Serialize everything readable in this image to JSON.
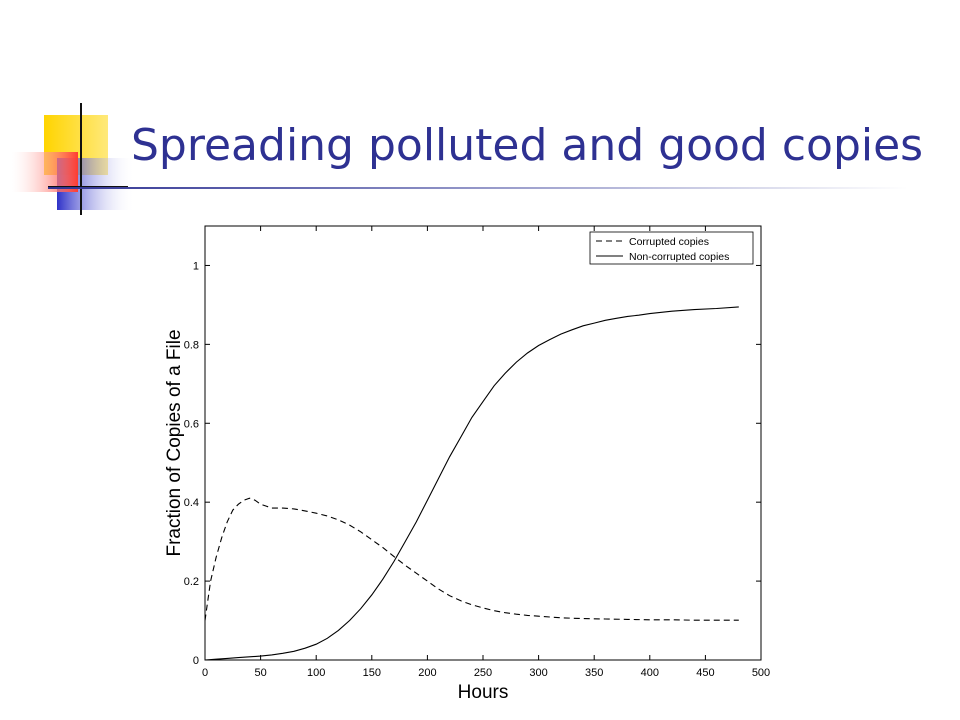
{
  "slide": {
    "title": "Spreading polluted and good copies"
  },
  "chart_data": {
    "type": "line",
    "xlabel": "Hours",
    "ylabel": "Fraction of Copies of a File",
    "xlim": [
      0,
      500
    ],
    "ylim": [
      0,
      1.1
    ],
    "xticks": [
      0,
      50,
      100,
      150,
      200,
      250,
      300,
      350,
      400,
      450,
      500
    ],
    "yticks": [
      0,
      0.2,
      0.4,
      0.6,
      0.8,
      1
    ],
    "legend_placement": "top-right",
    "grid": false,
    "series": [
      {
        "name": "Corrupted copies",
        "style": "dashed",
        "color": "#000000",
        "x": [
          0,
          2,
          5,
          10,
          15,
          20,
          25,
          30,
          35,
          40,
          45,
          50,
          55,
          60,
          70,
          80,
          90,
          100,
          110,
          120,
          130,
          140,
          150,
          160,
          170,
          180,
          190,
          200,
          210,
          220,
          230,
          240,
          250,
          260,
          270,
          280,
          290,
          300,
          320,
          340,
          360,
          380,
          400,
          420,
          440,
          460,
          480
        ],
        "y": [
          0.1,
          0.14,
          0.2,
          0.26,
          0.31,
          0.35,
          0.38,
          0.395,
          0.405,
          0.41,
          0.405,
          0.395,
          0.39,
          0.385,
          0.385,
          0.383,
          0.378,
          0.372,
          0.365,
          0.355,
          0.342,
          0.325,
          0.305,
          0.285,
          0.262,
          0.24,
          0.22,
          0.2,
          0.18,
          0.163,
          0.15,
          0.14,
          0.132,
          0.125,
          0.12,
          0.116,
          0.113,
          0.111,
          0.107,
          0.105,
          0.104,
          0.103,
          0.102,
          0.102,
          0.101,
          0.101,
          0.101
        ]
      },
      {
        "name": "Non-corrupted copies",
        "style": "solid",
        "color": "#000000",
        "x": [
          0,
          10,
          20,
          30,
          40,
          50,
          60,
          70,
          80,
          90,
          100,
          110,
          120,
          130,
          140,
          150,
          160,
          170,
          180,
          190,
          200,
          210,
          220,
          230,
          240,
          250,
          260,
          270,
          280,
          290,
          300,
          310,
          320,
          330,
          340,
          350,
          360,
          370,
          380,
          390,
          400,
          420,
          440,
          460,
          480
        ],
        "y": [
          0.0,
          0.002,
          0.004,
          0.006,
          0.008,
          0.01,
          0.013,
          0.017,
          0.022,
          0.03,
          0.04,
          0.055,
          0.075,
          0.1,
          0.13,
          0.165,
          0.205,
          0.25,
          0.3,
          0.35,
          0.405,
          0.46,
          0.515,
          0.565,
          0.615,
          0.655,
          0.695,
          0.727,
          0.755,
          0.778,
          0.797,
          0.812,
          0.826,
          0.837,
          0.847,
          0.854,
          0.861,
          0.866,
          0.871,
          0.874,
          0.878,
          0.884,
          0.888,
          0.891,
          0.895
        ]
      }
    ]
  }
}
